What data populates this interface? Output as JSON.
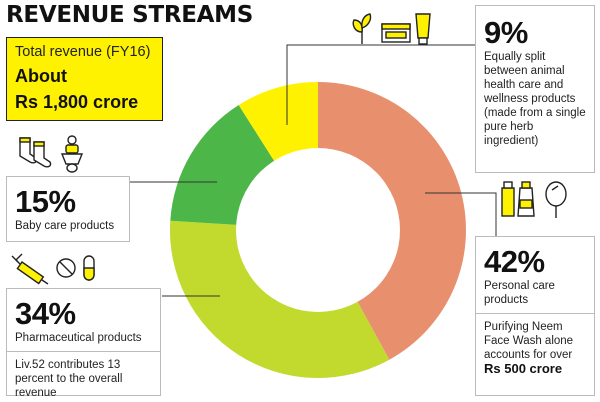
{
  "title": "REVENUE STREAMS",
  "total": {
    "label": "Total revenue (FY16)",
    "value_line1": "About",
    "value_line2": "Rs 1,800 crore"
  },
  "chart_data": {
    "type": "pie",
    "title": "REVENUE STREAMS",
    "donut": true,
    "categories": [
      "Personal care products",
      "Pharmaceutical products",
      "Baby care products",
      "Animal health care and wellness products"
    ],
    "values": [
      42,
      34,
      15,
      9
    ],
    "unit": "%",
    "colors": [
      "#e8906e",
      "#c2d92d",
      "#4cb748",
      "#fff200"
    ]
  },
  "segments": {
    "personal": {
      "pct": "42%",
      "desc": "Personal care products",
      "note": "Purifying Neem Face Wash alone accounts for over",
      "note_bold": "Rs 500 crore"
    },
    "pharma": {
      "pct": "34%",
      "desc": "Pharmaceutical products",
      "note": "Liv.52 contributes 13 percent to the overall revenue"
    },
    "baby": {
      "pct": "15%",
      "desc": "Baby care products"
    },
    "wellness": {
      "pct": "9%",
      "desc": "Equally split between animal health care and wellness products (made from a single pure herb ingredient)"
    }
  }
}
